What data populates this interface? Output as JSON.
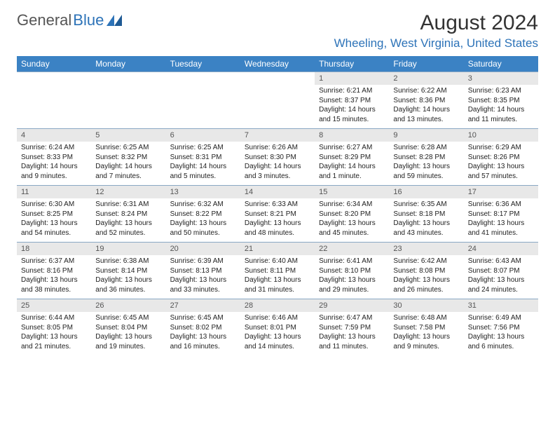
{
  "brand": {
    "part1": "General",
    "part2": "Blue"
  },
  "title": "August 2024",
  "location": "Wheeling, West Virginia, United States",
  "colors": {
    "header_bg": "#3b82c4",
    "header_fg": "#ffffff",
    "daynum_bg": "#e8e8e8",
    "row_border": "#8aa8c4",
    "brand_gray": "#555555",
    "brand_blue": "#2d73b8"
  },
  "fonts": {
    "title_size": 30,
    "location_size": 17,
    "dayhead_size": 12,
    "body_size": 10
  },
  "columns": [
    "Sunday",
    "Monday",
    "Tuesday",
    "Wednesday",
    "Thursday",
    "Friday",
    "Saturday"
  ],
  "weeks": [
    [
      null,
      null,
      null,
      null,
      {
        "n": "1",
        "sr": "6:21 AM",
        "ss": "8:37 PM",
        "dl": "14 hours and 15 minutes."
      },
      {
        "n": "2",
        "sr": "6:22 AM",
        "ss": "8:36 PM",
        "dl": "14 hours and 13 minutes."
      },
      {
        "n": "3",
        "sr": "6:23 AM",
        "ss": "8:35 PM",
        "dl": "14 hours and 11 minutes."
      }
    ],
    [
      {
        "n": "4",
        "sr": "6:24 AM",
        "ss": "8:33 PM",
        "dl": "14 hours and 9 minutes."
      },
      {
        "n": "5",
        "sr": "6:25 AM",
        "ss": "8:32 PM",
        "dl": "14 hours and 7 minutes."
      },
      {
        "n": "6",
        "sr": "6:25 AM",
        "ss": "8:31 PM",
        "dl": "14 hours and 5 minutes."
      },
      {
        "n": "7",
        "sr": "6:26 AM",
        "ss": "8:30 PM",
        "dl": "14 hours and 3 minutes."
      },
      {
        "n": "8",
        "sr": "6:27 AM",
        "ss": "8:29 PM",
        "dl": "14 hours and 1 minute."
      },
      {
        "n": "9",
        "sr": "6:28 AM",
        "ss": "8:28 PM",
        "dl": "13 hours and 59 minutes."
      },
      {
        "n": "10",
        "sr": "6:29 AM",
        "ss": "8:26 PM",
        "dl": "13 hours and 57 minutes."
      }
    ],
    [
      {
        "n": "11",
        "sr": "6:30 AM",
        "ss": "8:25 PM",
        "dl": "13 hours and 54 minutes."
      },
      {
        "n": "12",
        "sr": "6:31 AM",
        "ss": "8:24 PM",
        "dl": "13 hours and 52 minutes."
      },
      {
        "n": "13",
        "sr": "6:32 AM",
        "ss": "8:22 PM",
        "dl": "13 hours and 50 minutes."
      },
      {
        "n": "14",
        "sr": "6:33 AM",
        "ss": "8:21 PM",
        "dl": "13 hours and 48 minutes."
      },
      {
        "n": "15",
        "sr": "6:34 AM",
        "ss": "8:20 PM",
        "dl": "13 hours and 45 minutes."
      },
      {
        "n": "16",
        "sr": "6:35 AM",
        "ss": "8:18 PM",
        "dl": "13 hours and 43 minutes."
      },
      {
        "n": "17",
        "sr": "6:36 AM",
        "ss": "8:17 PM",
        "dl": "13 hours and 41 minutes."
      }
    ],
    [
      {
        "n": "18",
        "sr": "6:37 AM",
        "ss": "8:16 PM",
        "dl": "13 hours and 38 minutes."
      },
      {
        "n": "19",
        "sr": "6:38 AM",
        "ss": "8:14 PM",
        "dl": "13 hours and 36 minutes."
      },
      {
        "n": "20",
        "sr": "6:39 AM",
        "ss": "8:13 PM",
        "dl": "13 hours and 33 minutes."
      },
      {
        "n": "21",
        "sr": "6:40 AM",
        "ss": "8:11 PM",
        "dl": "13 hours and 31 minutes."
      },
      {
        "n": "22",
        "sr": "6:41 AM",
        "ss": "8:10 PM",
        "dl": "13 hours and 29 minutes."
      },
      {
        "n": "23",
        "sr": "6:42 AM",
        "ss": "8:08 PM",
        "dl": "13 hours and 26 minutes."
      },
      {
        "n": "24",
        "sr": "6:43 AM",
        "ss": "8:07 PM",
        "dl": "13 hours and 24 minutes."
      }
    ],
    [
      {
        "n": "25",
        "sr": "6:44 AM",
        "ss": "8:05 PM",
        "dl": "13 hours and 21 minutes."
      },
      {
        "n": "26",
        "sr": "6:45 AM",
        "ss": "8:04 PM",
        "dl": "13 hours and 19 minutes."
      },
      {
        "n": "27",
        "sr": "6:45 AM",
        "ss": "8:02 PM",
        "dl": "13 hours and 16 minutes."
      },
      {
        "n": "28",
        "sr": "6:46 AM",
        "ss": "8:01 PM",
        "dl": "13 hours and 14 minutes."
      },
      {
        "n": "29",
        "sr": "6:47 AM",
        "ss": "7:59 PM",
        "dl": "13 hours and 11 minutes."
      },
      {
        "n": "30",
        "sr": "6:48 AM",
        "ss": "7:58 PM",
        "dl": "13 hours and 9 minutes."
      },
      {
        "n": "31",
        "sr": "6:49 AM",
        "ss": "7:56 PM",
        "dl": "13 hours and 6 minutes."
      }
    ]
  ],
  "labels": {
    "sunrise": "Sunrise:",
    "sunset": "Sunset:",
    "daylight": "Daylight:"
  }
}
